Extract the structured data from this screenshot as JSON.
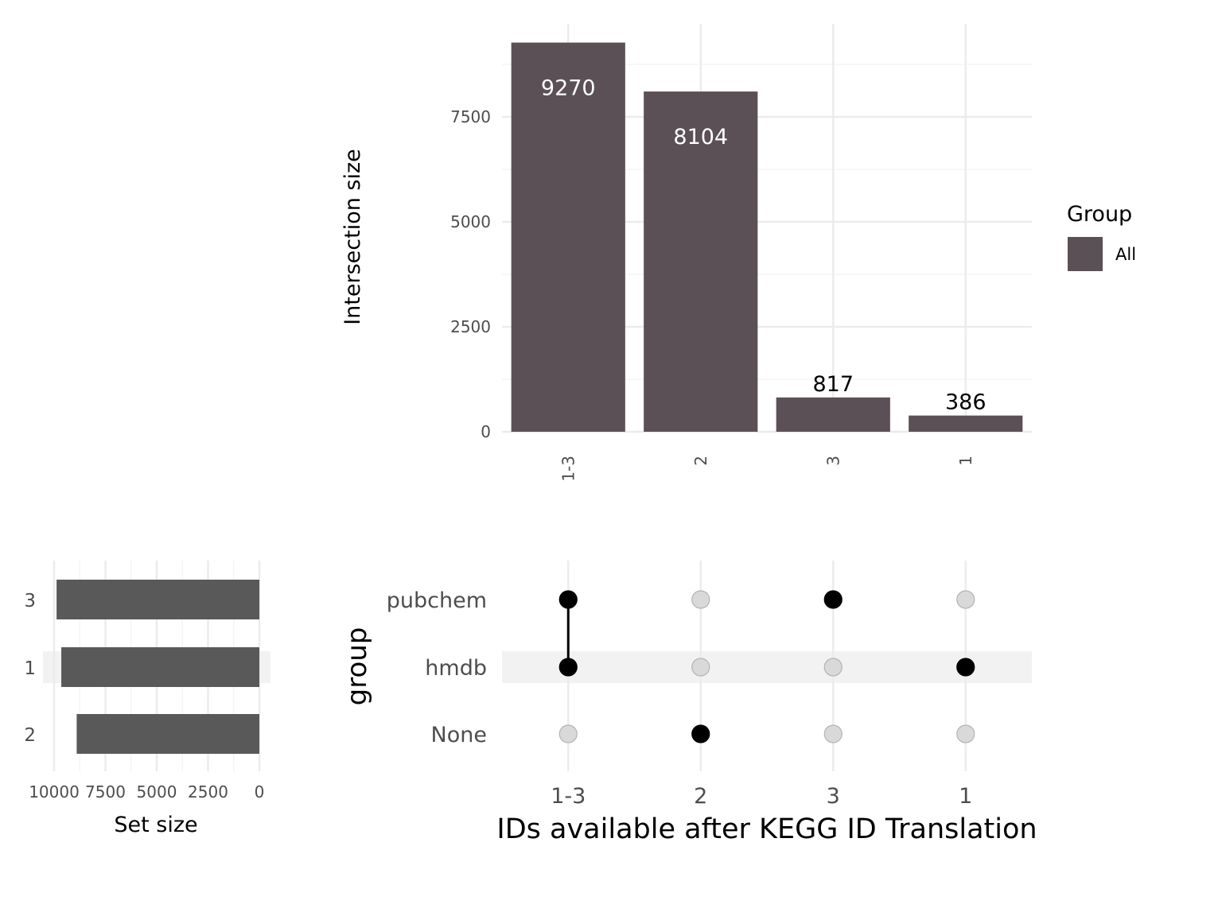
{
  "chart_data": [
    {
      "type": "bar",
      "role": "intersection-size",
      "categories": [
        "1-3",
        "2",
        "3",
        "1"
      ],
      "values": [
        9270,
        8104,
        817,
        386
      ],
      "ylabel": "Intersection size",
      "yticks": [
        "0",
        "2500",
        "5000",
        "7500"
      ],
      "ytick_values": [
        0,
        2500,
        5000,
        7500
      ],
      "ylim": [
        0,
        9734
      ],
      "bar_color": "#5b5055",
      "legend": {
        "title": "Group",
        "items": [
          {
            "label": "All",
            "color": "#5b5055"
          }
        ],
        "position": "right"
      }
    },
    {
      "type": "bar",
      "role": "set-size",
      "orientation": "horizontal-reversed",
      "categories": [
        "3",
        "1",
        "2"
      ],
      "values": [
        9880,
        9650,
        8900
      ],
      "xlabel": "Set size",
      "xticks": [
        "10000",
        "7500",
        "5000",
        "2500",
        "0"
      ],
      "xtick_values": [
        10000,
        7500,
        5000,
        2500,
        0
      ],
      "xlim": [
        0,
        10500
      ],
      "bar_color": "#595959"
    },
    {
      "type": "matrix",
      "role": "intersection-matrix",
      "ylabel": "group",
      "xlabel": "IDs available after KEGG ID Translation",
      "rows": [
        "pubchem",
        "hmdb",
        "None"
      ],
      "columns": [
        "1-3",
        "2",
        "3",
        "1"
      ],
      "membership": [
        [
          1,
          0,
          1,
          0
        ],
        [
          1,
          0,
          0,
          1
        ],
        [
          0,
          1,
          0,
          0
        ]
      ],
      "filled_color": "#000000",
      "empty_color": "#d9d9d9"
    }
  ]
}
